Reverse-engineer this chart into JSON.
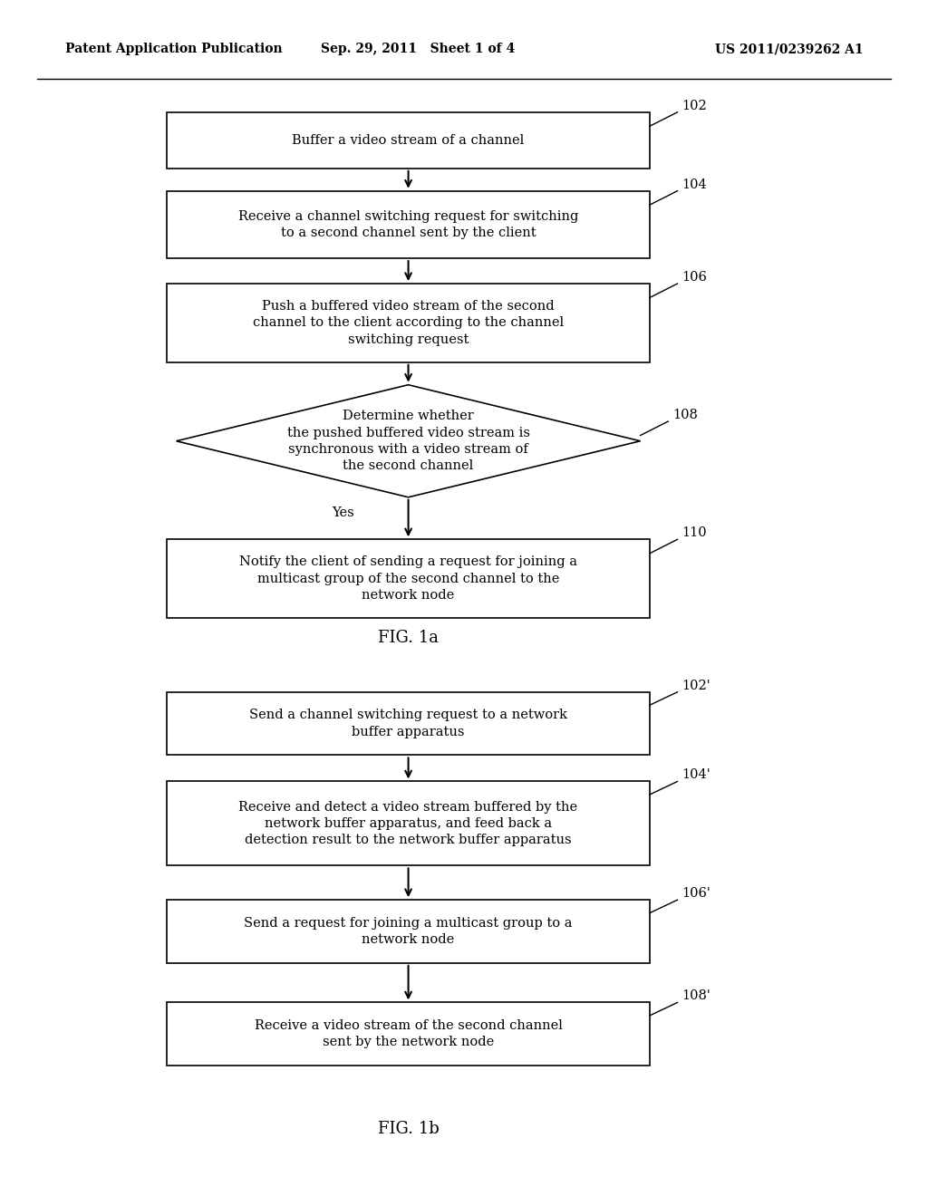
{
  "bg_color": "#ffffff",
  "header_left": "Patent Application Publication",
  "header_center": "Sep. 29, 2011   Sheet 1 of 4",
  "header_right": "US 2011/0239262 A1",
  "fig1a_label": "FIG. 1a",
  "fig1b_label": "FIG. 1b",
  "header_fontsize": 10,
  "fig_label_fontsize": 13,
  "text_fontsize": 10.5,
  "ref_fontsize": 10.5,
  "yes_fontsize": 10.5
}
